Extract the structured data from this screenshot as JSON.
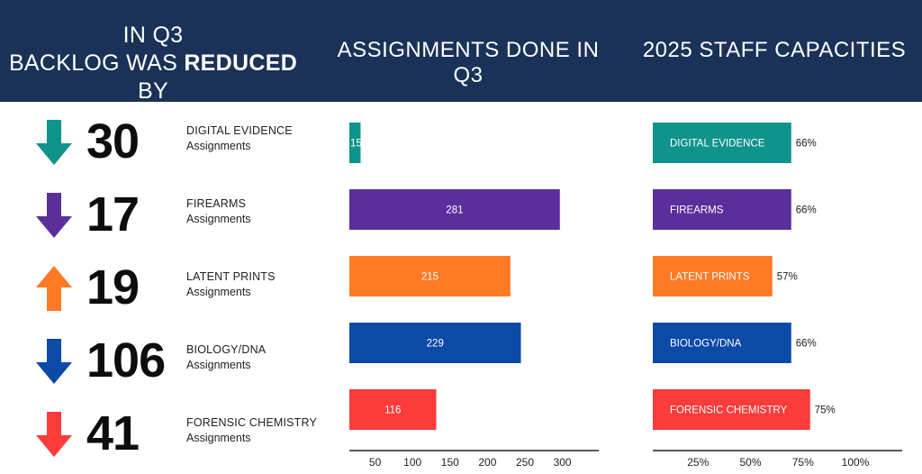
{
  "header": {
    "left_line1": "IN Q3",
    "left_line2_prefix": "BACKLOG WAS ",
    "left_line2_bold": "REDUCED",
    "left_line2_suffix": " BY",
    "middle_title": "ASSIGNMENTS DONE IN Q3",
    "right_title": "2025 STAFF CAPACITIES"
  },
  "sub_label": "Assignments",
  "categories": [
    {
      "name": "DIGITAL EVIDENCE",
      "color": "#10938a",
      "reduction": "30",
      "arrow": "down"
    },
    {
      "name": "FIREARMS",
      "color": "#5a2f9c",
      "reduction": "17",
      "arrow": "down"
    },
    {
      "name": "LATENT PRINTS",
      "color": "#ff7a25",
      "reduction": "19",
      "arrow": "up"
    },
    {
      "name": "BIOLOGY/DNA",
      "color": "#0c4aa8",
      "reduction": "106",
      "arrow": "down"
    },
    {
      "name": "FORENSIC CHEMISTRY",
      "color": "#fc3b3b",
      "reduction": "41",
      "arrow": "down"
    }
  ],
  "chart_data": [
    {
      "type": "bar",
      "title": "ASSIGNMENTS DONE IN Q3",
      "orientation": "horizontal",
      "categories": [
        "DIGITAL EVIDENCE",
        "FIREARMS",
        "LATENT PRINTS",
        "BIOLOGY/DNA",
        "FORENSIC CHEMISTRY"
      ],
      "values": [
        15,
        281,
        215,
        229,
        116
      ],
      "value_labels": [
        "15",
        "281",
        "215",
        "229",
        "116"
      ],
      "xlim": [
        0,
        325
      ],
      "xticks": [
        50,
        100,
        150,
        200,
        250,
        300
      ],
      "xtick_labels": [
        "50",
        "100",
        "150",
        "200",
        "250",
        "300"
      ]
    },
    {
      "type": "bar",
      "title": "2025 STAFF CAPACITIES",
      "orientation": "horizontal",
      "categories": [
        "DIGITAL EVIDENCE",
        "FIREARMS",
        "LATENT PRINTS",
        "BIOLOGY/DNA",
        "FORENSIC CHEMISTRY"
      ],
      "values": [
        66,
        66,
        57,
        66,
        75
      ],
      "value_labels": [
        "66%",
        "66%",
        "57%",
        "66%",
        "75%"
      ],
      "xlim": [
        0,
        100
      ],
      "xticks": [
        25,
        50,
        75,
        100
      ],
      "xtick_labels": [
        "25%",
        "50%",
        "75%",
        "100%"
      ]
    }
  ]
}
